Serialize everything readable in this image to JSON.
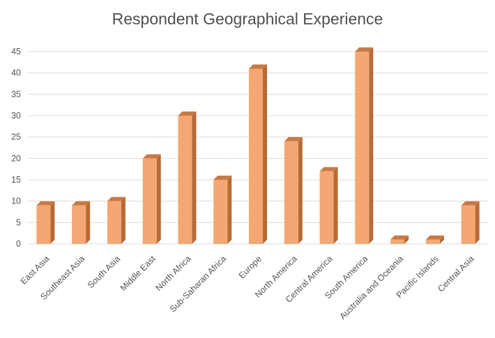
{
  "chart_data": {
    "type": "bar",
    "title": "Respondent Geographical Experience",
    "xlabel": "",
    "ylabel": "",
    "categories": [
      "East Asia",
      "Southeast Asia",
      "South Asia",
      "Middle East",
      "North Africa",
      "Sub-Saharan Africa",
      "Europe",
      "North America",
      "Central America",
      "South America",
      "Australia and Oceania",
      "Pacific Islands",
      "Central Asia"
    ],
    "values": [
      9,
      9,
      10,
      20,
      30,
      15,
      41,
      24,
      17,
      45,
      1,
      1,
      9
    ],
    "ylim": [
      0,
      45
    ],
    "yticks": [
      0,
      5,
      10,
      15,
      20,
      25,
      30,
      35,
      40,
      45
    ],
    "grid": true,
    "legend": "none",
    "style": "3d-column",
    "colors": {
      "bar_front": "#F4A772",
      "bar_side": "#B86A35",
      "bar_top": "#C77A45",
      "grid": "#D9D9D9",
      "text": "#555555"
    }
  }
}
